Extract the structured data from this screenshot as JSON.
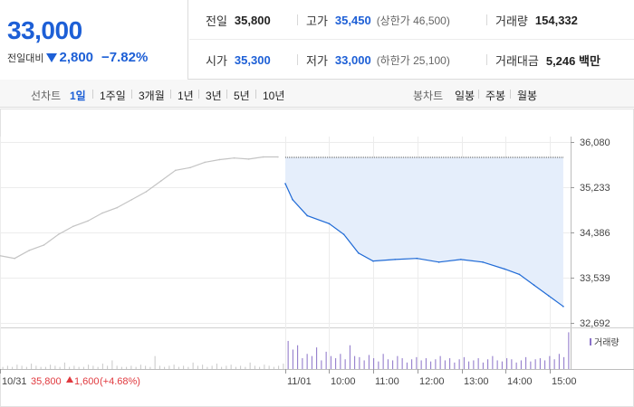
{
  "quote": {
    "price": "33,000",
    "change_label": "전일대비",
    "change_amount": "2,800",
    "change_percent": "−7.82%",
    "stats": {
      "prev_close": {
        "label": "전일",
        "value": "35,800"
      },
      "high": {
        "label": "고가",
        "value": "35,450",
        "sub": "(상한가 46,500)"
      },
      "volume": {
        "label": "거래량",
        "value": "154,332"
      },
      "open": {
        "label": "시가",
        "value": "35,300"
      },
      "low": {
        "label": "저가",
        "value": "33,000",
        "sub": "(하한가 25,100)"
      },
      "amount": {
        "label": "거래대금",
        "value": "5,246 백만"
      }
    },
    "colors": {
      "down": "#1d5fd6",
      "up": "#e0393e"
    }
  },
  "toolbar": {
    "line_label": "선차트",
    "line_periods": [
      "1일",
      "1주일",
      "3개월",
      "1년",
      "3년",
      "5년",
      "10년"
    ],
    "active_line_period": "1일",
    "candle_label": "봉차트",
    "candle_periods": [
      "일봉",
      "주봉",
      "월봉"
    ]
  },
  "chart_data": {
    "type": "line",
    "y_ticks": [
      "36,080",
      "35,233",
      "34,386",
      "33,539",
      "32,692"
    ],
    "ylim": [
      32692,
      36080
    ],
    "x_ticks": [
      "10/31",
      "11/01",
      "10:00",
      "11:00",
      "12:00",
      "13:00",
      "14:00",
      "15:00"
    ],
    "prev_day_summary": {
      "close": "35,800",
      "change": "1,600",
      "percent": "(+4.68%)"
    },
    "volume_legend": "거래량",
    "series": [
      {
        "day": "10/31",
        "color": "#c4c4c4",
        "x": [
          "09:00",
          "09:20",
          "09:40",
          "10:00",
          "10:20",
          "10:40",
          "11:00",
          "11:20",
          "11:40",
          "12:00",
          "12:20",
          "12:40",
          "13:00",
          "13:20",
          "13:40",
          "14:00",
          "14:20",
          "14:40",
          "15:00",
          "15:20"
        ],
        "values": [
          33950,
          33900,
          34050,
          34150,
          34350,
          34500,
          34600,
          34750,
          34850,
          35000,
          35150,
          35350,
          35550,
          35600,
          35700,
          35750,
          35780,
          35760,
          35800,
          35800
        ]
      },
      {
        "day": "11/01",
        "color": "#1f6ad6",
        "x": [
          "09:00",
          "09:10",
          "09:30",
          "10:00",
          "10:20",
          "10:40",
          "11:00",
          "11:30",
          "12:00",
          "12:30",
          "13:00",
          "13:30",
          "14:00",
          "14:20",
          "14:40",
          "15:00",
          "15:20"
        ],
        "values": [
          35300,
          35000,
          34700,
          34550,
          34350,
          34000,
          33850,
          33880,
          33900,
          33830,
          33880,
          33830,
          33700,
          33600,
          33400,
          33200,
          33000
        ]
      }
    ],
    "volume": {
      "prev_day": [
        2,
        3,
        2,
        4,
        3,
        2,
        5,
        3,
        2,
        2,
        4,
        3,
        2,
        6,
        2,
        3,
        2,
        2,
        4,
        3,
        2,
        5,
        3,
        8,
        3,
        2,
        2,
        3,
        2,
        4,
        3,
        2,
        12,
        3,
        2,
        3,
        4,
        2,
        3,
        2,
        6,
        3,
        4,
        2,
        3,
        5,
        2,
        3,
        4,
        2,
        3,
        2,
        6,
        3,
        2,
        4,
        3,
        2,
        3,
        5
      ],
      "today": [
        26,
        18,
        22,
        10,
        14,
        12,
        20,
        8,
        16,
        12,
        10,
        14,
        9,
        22,
        12,
        11,
        8,
        13,
        10,
        7,
        14,
        9,
        8,
        12,
        10,
        6,
        9,
        11,
        8,
        10,
        7,
        9,
        12,
        8,
        10,
        6,
        9,
        11,
        7,
        8,
        10,
        6,
        9,
        12,
        8,
        7,
        10,
        9,
        6,
        8,
        11,
        7,
        9,
        10,
        8,
        12,
        9,
        14,
        11,
        34
      ]
    }
  }
}
